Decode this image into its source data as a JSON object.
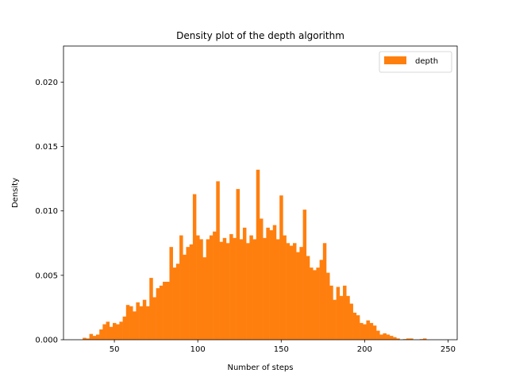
{
  "chart_data": {
    "type": "bar",
    "title": "Density plot of the depth algorithm",
    "xlabel": "Number of steps",
    "ylabel": "Density",
    "xlim": [
      19.5,
      255.5
    ],
    "ylim": [
      0,
      0.0228
    ],
    "xticks": [
      50,
      100,
      150,
      200,
      250
    ],
    "xtick_labels": [
      "50",
      "100",
      "150",
      "200",
      "250"
    ],
    "yticks": [
      0,
      0.005,
      0.01,
      0.015,
      0.02
    ],
    "ytick_labels": [
      "0.000",
      "0.005",
      "0.010",
      "0.015",
      "0.020"
    ],
    "bin_width": 2.0,
    "bin_start": 31,
    "grid": false,
    "legend_position": "top-right",
    "series": [
      {
        "name": "depth",
        "color": "#ff7f0e",
        "values": [
          0.00015,
          0.0001,
          0.00045,
          0.0003,
          0.0004,
          0.0008,
          0.0012,
          0.0014,
          0.001,
          0.0013,
          0.0012,
          0.0014,
          0.0018,
          0.0027,
          0.0026,
          0.0022,
          0.0029,
          0.0026,
          0.0031,
          0.0026,
          0.0048,
          0.0033,
          0.004,
          0.0042,
          0.0045,
          0.0045,
          0.0072,
          0.0056,
          0.0059,
          0.0081,
          0.0066,
          0.0072,
          0.0074,
          0.0113,
          0.0081,
          0.0078,
          0.0064,
          0.0078,
          0.0081,
          0.0084,
          0.0123,
          0.0076,
          0.0079,
          0.0075,
          0.0082,
          0.0079,
          0.0117,
          0.0078,
          0.0087,
          0.0075,
          0.0081,
          0.0078,
          0.0132,
          0.0094,
          0.0079,
          0.0087,
          0.0085,
          0.0089,
          0.0078,
          0.0112,
          0.0081,
          0.0075,
          0.0073,
          0.0075,
          0.0068,
          0.0072,
          0.0101,
          0.0065,
          0.0056,
          0.0054,
          0.0056,
          0.0062,
          0.0075,
          0.0052,
          0.0042,
          0.0031,
          0.0041,
          0.0034,
          0.0042,
          0.0034,
          0.0028,
          0.0021,
          0.0019,
          0.0013,
          0.0012,
          0.0015,
          0.0013,
          0.0011,
          0.0007,
          0.0004,
          0.0005,
          0.0004,
          0.0003,
          0.0002,
          0.0001,
          0.0,
          5e-05,
          0.0001,
          0.0001,
          0.0,
          0.0,
          5e-05,
          0.0001,
          0.0
        ]
      }
    ]
  }
}
